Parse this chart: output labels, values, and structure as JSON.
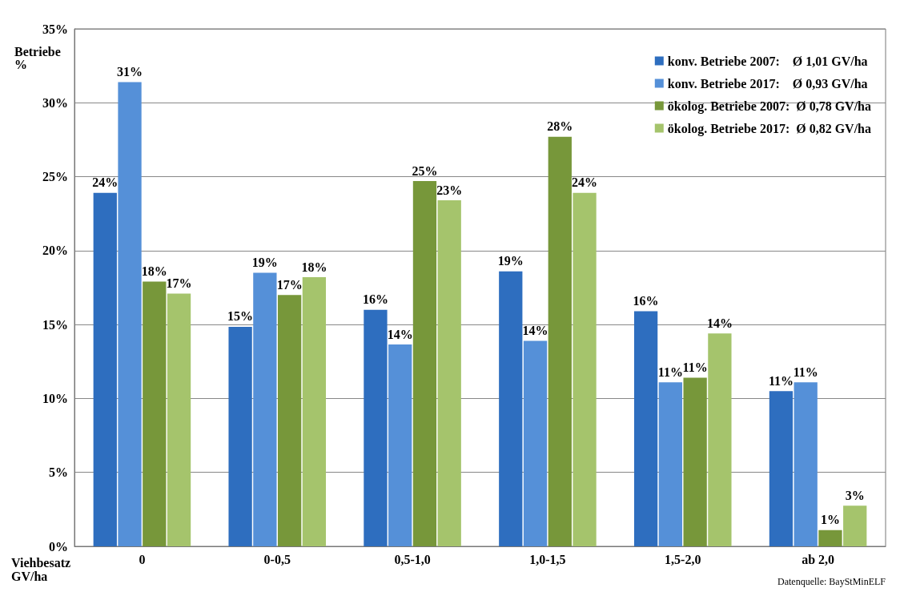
{
  "chart_data": {
    "type": "bar",
    "ylabel": "Betriebe\n%",
    "xlabel": "Viehbesatz\nGV/ha",
    "annotations": [
      "Datenquelle: BayStMinELF"
    ],
    "categories": [
      "0",
      "0-0,5",
      "0,5-1,0",
      "1,0-1,5",
      "1,5-2,0",
      "ab 2,0"
    ],
    "series": [
      {
        "name": "konv. Betriebe 2007:    Ø 1,01 GV/ha",
        "color": "#2e6ebf",
        "values": [
          23.9,
          14.85,
          16.0,
          18.6,
          15.9,
          10.5
        ],
        "value_labels": [
          "24%",
          "15%",
          "16%",
          "19%",
          "16%",
          "11%"
        ]
      },
      {
        "name": "konv. Betriebe 2017:    Ø 0,93 GV/ha",
        "color": "#5590d8",
        "values": [
          31.4,
          18.5,
          13.65,
          13.9,
          11.1,
          11.1
        ],
        "value_labels": [
          "31%",
          "19%",
          "14%",
          "14%",
          "11%",
          "11%"
        ]
      },
      {
        "name": "ökolog. Betriebe 2007:  Ø 0,78 GV/ha",
        "color": "#77973a",
        "values": [
          17.9,
          17.0,
          24.7,
          27.7,
          11.4,
          1.1
        ],
        "value_labels": [
          "18%",
          "17%",
          "25%",
          "28%",
          "11%",
          "1%"
        ]
      },
      {
        "name": "ökolog. Betriebe 2017:  Ø 0,82 GV/ha",
        "color": "#a5c46c",
        "values": [
          17.1,
          18.2,
          23.4,
          23.9,
          14.4,
          2.75
        ],
        "value_labels": [
          "17%",
          "18%",
          "23%",
          "24%",
          "14%",
          "3%"
        ]
      }
    ],
    "ylim": [
      0,
      35
    ],
    "yticks": [
      {
        "value": 0,
        "label": "0%"
      },
      {
        "value": 5,
        "label": "5%"
      },
      {
        "value": 10,
        "label": "10%"
      },
      {
        "value": 15,
        "label": "15%"
      },
      {
        "value": 20,
        "label": "20%"
      },
      {
        "value": 25,
        "label": "25%"
      },
      {
        "value": 30,
        "label": "30%"
      },
      {
        "value": 35,
        "label": "35%"
      }
    ],
    "grid": "y",
    "legend": "top right"
  }
}
